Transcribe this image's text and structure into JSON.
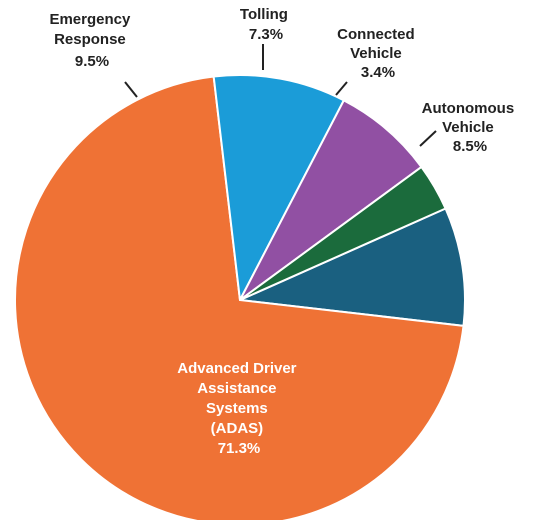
{
  "chart_data": {
    "type": "pie",
    "slices": [
      {
        "label_lines": [
          "Autonomous",
          "Vehicle"
        ],
        "value_label": "8.5%",
        "value": 8.5,
        "color": "#1a6080"
      },
      {
        "label_lines": [
          "Advanced Driver",
          "Assistance",
          "Systems",
          "(ADAS)"
        ],
        "value_label": "71.3%",
        "value": 71.3,
        "color": "#ef7235"
      },
      {
        "label_lines": [
          "Emergency",
          "Response"
        ],
        "value_label": "9.5%",
        "value": 9.5,
        "color": "#1b9cd8"
      },
      {
        "label_lines": [
          "Tolling"
        ],
        "value_label": "7.3%",
        "value": 7.3,
        "color": "#9150a3"
      },
      {
        "label_lines": [
          "Connected",
          "Vehicle"
        ],
        "value_label": "3.4%",
        "value": 3.4,
        "color": "#1b6b3c"
      }
    ]
  }
}
